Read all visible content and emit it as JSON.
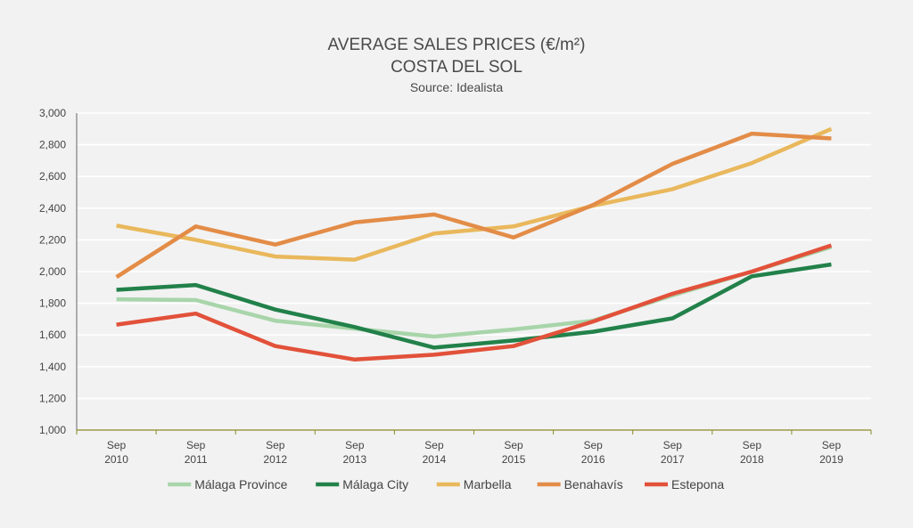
{
  "chart_data": {
    "type": "line",
    "title": [
      "AVERAGE SALES PRICES (€/m²)",
      "COSTA DEL SOL"
    ],
    "subtitle": "Source: Idealista",
    "categories": [
      [
        "Sep",
        "2010"
      ],
      [
        "Sep",
        "2011"
      ],
      [
        "Sep",
        "2012"
      ],
      [
        "Sep",
        "2013"
      ],
      [
        "Sep",
        "2014"
      ],
      [
        "Sep",
        "2015"
      ],
      [
        "Sep",
        "2016"
      ],
      [
        "Sep",
        "2017"
      ],
      [
        "Sep",
        "2018"
      ],
      [
        "Sep",
        "2019"
      ]
    ],
    "ylim": [
      1000,
      3000
    ],
    "yticks": [
      1000,
      1200,
      1400,
      1600,
      1800,
      2000,
      2200,
      2400,
      2600,
      2800,
      3000
    ],
    "ytick_labels": [
      "1,000",
      "1,200",
      "1,400",
      "1,600",
      "1,800",
      "2,000",
      "2,200",
      "2,400",
      "2,600",
      "2,800",
      "3,000"
    ],
    "grid": true,
    "legend_position": "bottom",
    "series": [
      {
        "name": "Málaga Province",
        "color": "#a8d5aa",
        "values": [
          1825,
          1820,
          1690,
          1640,
          1590,
          1635,
          1690,
          1850,
          2000,
          2155
        ]
      },
      {
        "name": "Málaga City",
        "color": "#22814a",
        "values": [
          1885,
          1915,
          1760,
          1650,
          1520,
          1565,
          1620,
          1705,
          1970,
          2045
        ]
      },
      {
        "name": "Marbella",
        "color": "#e9b85c",
        "values": [
          2290,
          2200,
          2095,
          2075,
          2240,
          2285,
          2415,
          2520,
          2685,
          2900
        ]
      },
      {
        "name": "Benahavís",
        "color": "#e38c47",
        "values": [
          1965,
          2285,
          2170,
          2310,
          2360,
          2215,
          2420,
          2680,
          2870,
          2840
        ]
      },
      {
        "name": "Estepona",
        "color": "#e2513a",
        "values": [
          1665,
          1735,
          1530,
          1445,
          1475,
          1530,
          1685,
          1860,
          2000,
          2165
        ]
      }
    ]
  }
}
